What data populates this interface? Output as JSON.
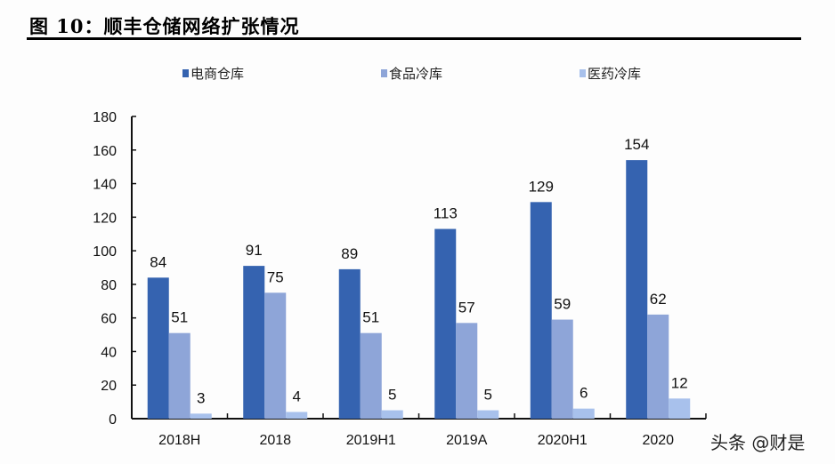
{
  "header": {
    "title": "图 10：顺丰仓储网络扩张情况"
  },
  "watermark": "头条 @财是",
  "chart_data": {
    "type": "bar",
    "categories": [
      "2018H",
      "2018",
      "2019H1",
      "2019A",
      "2020H1",
      "2020"
    ],
    "series": [
      {
        "name": "电商仓库",
        "values": [
          84,
          91,
          89,
          113,
          129,
          154
        ],
        "color": "#3563b0"
      },
      {
        "name": "食品冷库",
        "values": [
          51,
          75,
          51,
          57,
          59,
          62
        ],
        "color": "#8ea5d8"
      },
      {
        "name": "医药冷库",
        "values": [
          3,
          4,
          5,
          5,
          6,
          12
        ],
        "color": "#a8c1ec"
      }
    ],
    "ylim": [
      0,
      180
    ],
    "yticks": [
      0,
      20,
      40,
      60,
      80,
      100,
      120,
      140,
      160,
      180
    ],
    "legend": "top",
    "grid": false
  }
}
